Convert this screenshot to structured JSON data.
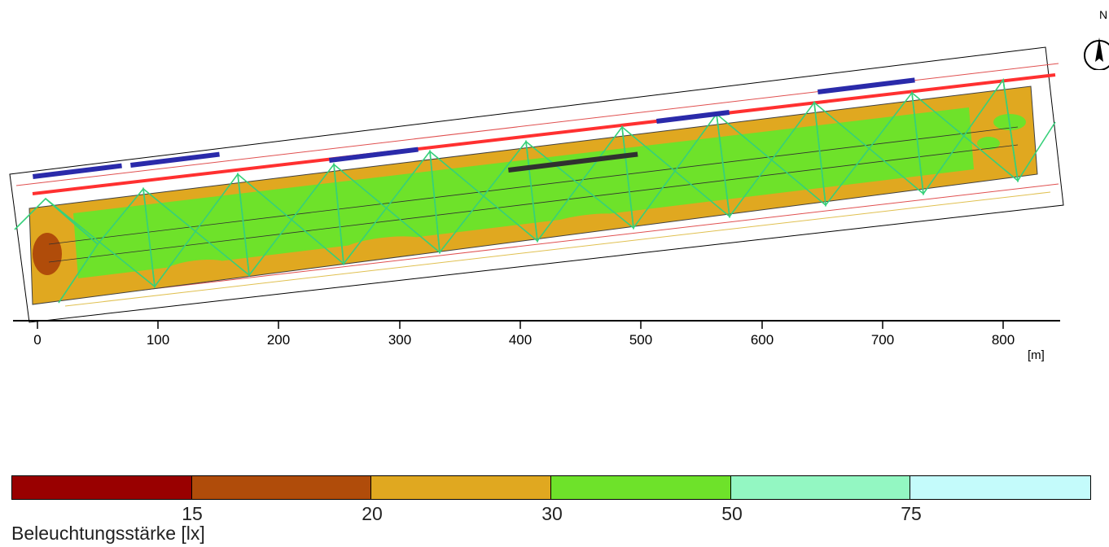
{
  "map": {
    "x_axis": {
      "ticks": [
        "0",
        "100",
        "200",
        "300",
        "400",
        "500",
        "600",
        "700",
        "800"
      ],
      "unit": "[m]"
    },
    "north_label": "N"
  },
  "legend": {
    "title": "Beleuchtungsstärke [lx]",
    "colors": [
      "#990000",
      "#b04c0a",
      "#e0a820",
      "#6ee22a",
      "#93f7c2",
      "#c4fbfb"
    ],
    "values": [
      "15",
      "20",
      "30",
      "50",
      "75"
    ]
  }
}
